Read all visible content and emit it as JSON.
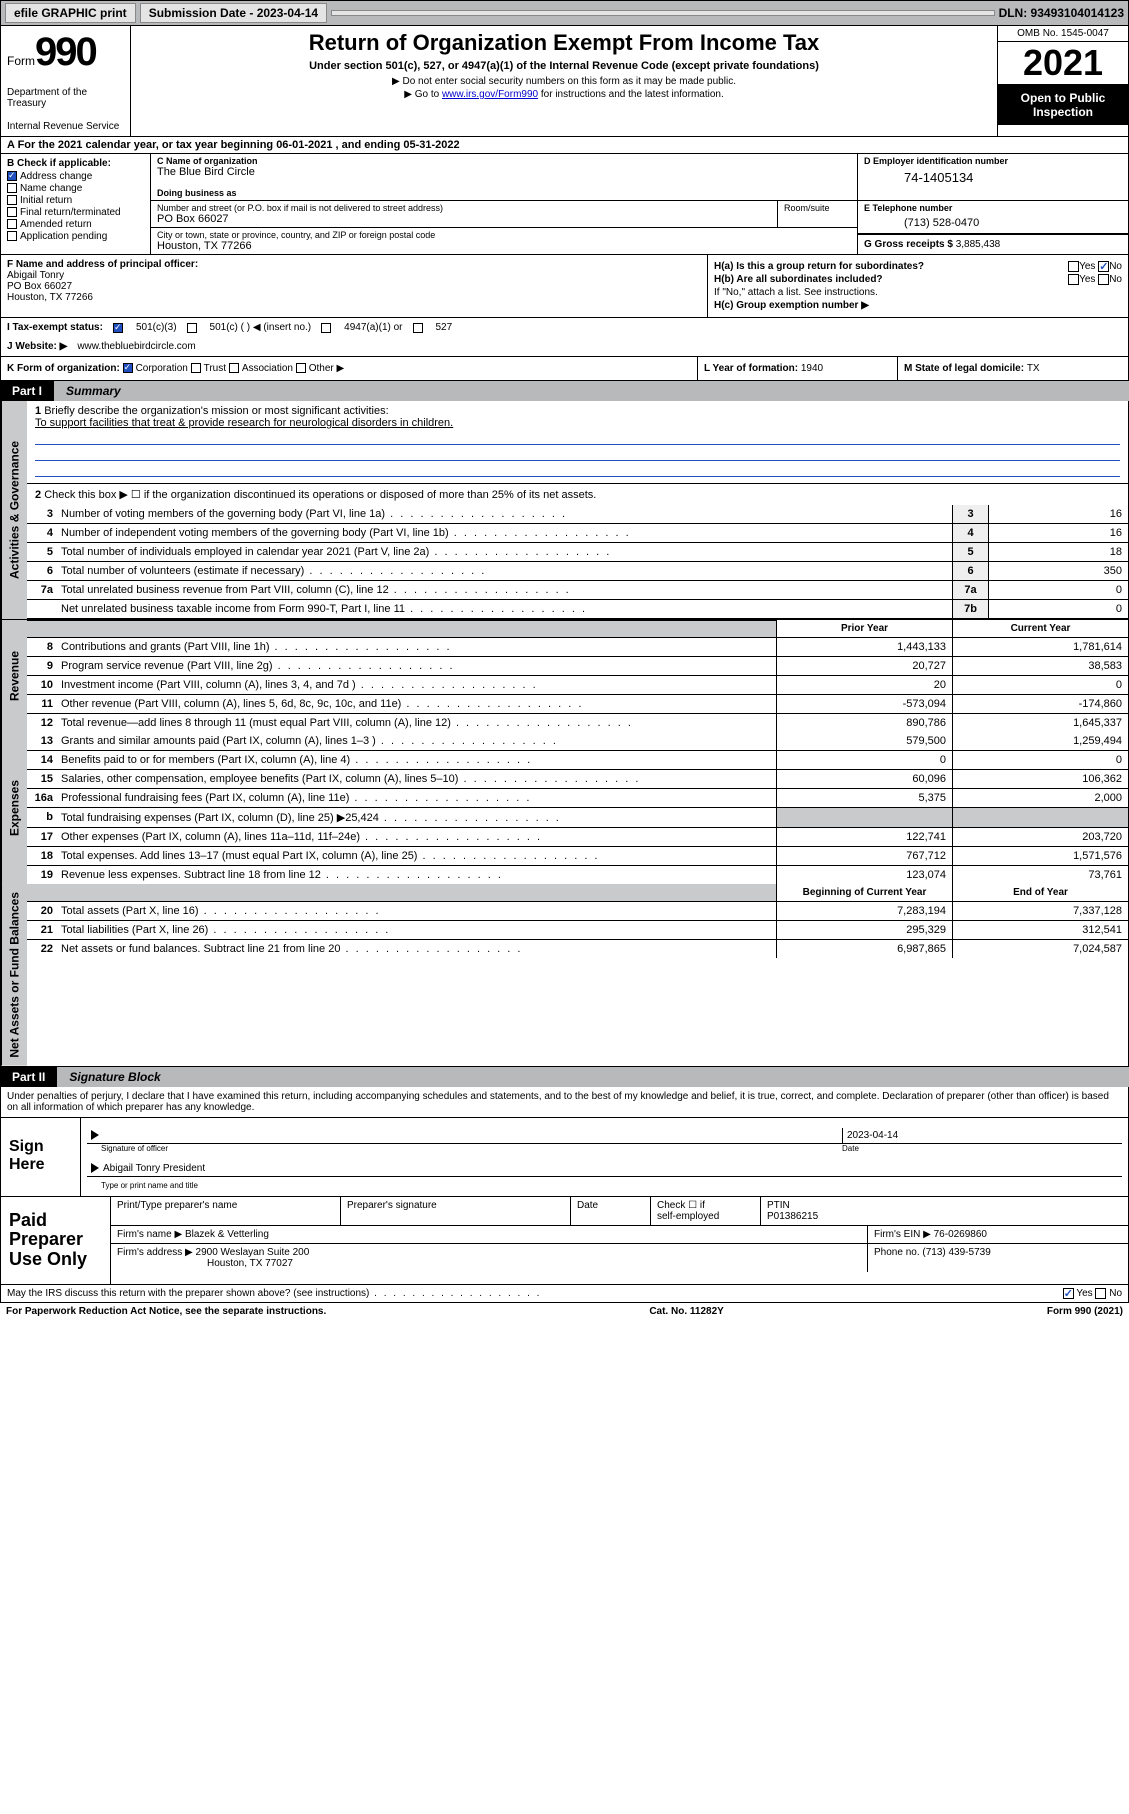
{
  "topbar": {
    "efile": "efile GRAPHIC print",
    "sub_label": "Submission Date - 2023-04-14",
    "dln": "DLN: 93493104014123"
  },
  "header": {
    "form_word": "Form",
    "form_num": "990",
    "title": "Return of Organization Exempt From Income Tax",
    "subtitle": "Under section 501(c), 527, or 4947(a)(1) of the Internal Revenue Code (except private foundations)",
    "note1": "▶ Do not enter social security numbers on this form as it may be made public.",
    "note2_pre": "▶ Go to ",
    "note2_link": "www.irs.gov/Form990",
    "note2_post": " for instructions and the latest information.",
    "dept": "Department of the Treasury",
    "irs": "Internal Revenue Service",
    "omb": "OMB No. 1545-0047",
    "year": "2021",
    "open": "Open to Public Inspection"
  },
  "row_a": "A For the 2021 calendar year, or tax year beginning 06-01-2021   , and ending 05-31-2022",
  "col_b": {
    "hdr": "B Check if applicable:",
    "items": [
      {
        "label": "Address change",
        "checked": true
      },
      {
        "label": "Name change",
        "checked": false
      },
      {
        "label": "Initial return",
        "checked": false
      },
      {
        "label": "Final return/terminated",
        "checked": false
      },
      {
        "label": "Amended return",
        "checked": false
      },
      {
        "label": "Application pending",
        "checked": false
      }
    ]
  },
  "col_c": {
    "name_lbl": "C Name of organization",
    "name": "The Blue Bird Circle",
    "dba_lbl": "Doing business as",
    "addr_lbl": "Number and street (or P.O. box if mail is not delivered to street address)",
    "addr": "PO Box 66027",
    "room_lbl": "Room/suite",
    "city_lbl": "City or town, state or province, country, and ZIP or foreign postal code",
    "city": "Houston, TX  77266"
  },
  "col_d": {
    "lbl": "D Employer identification number",
    "val": "74-1405134"
  },
  "col_e": {
    "lbl": "E Telephone number",
    "val": "(713) 528-0470"
  },
  "col_g": {
    "lbl": "G Gross receipts $ ",
    "val": "3,885,438"
  },
  "row_f": {
    "lbl": "F  Name and address of principal officer:",
    "name": "Abigail Tonry",
    "addr1": "PO Box 66027",
    "addr2": "Houston, TX  77266"
  },
  "row_h": {
    "ha": "H(a)  Is this a group return for subordinates?",
    "hb": "H(b)  Are all subordinates included?",
    "hb_note": "If \"No,\" attach a list. See instructions.",
    "hc": "H(c)  Group exemption number ▶",
    "ha_yes": false,
    "ha_no": true
  },
  "row_i": {
    "lbl": "I     Tax-exempt status:",
    "opt1": "501(c)(3)",
    "opt2": "501(c) (  ) ◀ (insert no.)",
    "opt3": "4947(a)(1) or",
    "opt4": "527"
  },
  "row_j": {
    "lbl": "J     Website: ▶ ",
    "val": "www.thebluebirdcircle.com"
  },
  "row_k": {
    "lbl": "K Form of organization:",
    "opts": [
      "Corporation",
      "Trust",
      "Association",
      "Other ▶"
    ]
  },
  "row_l": {
    "lbl": "L Year of formation: ",
    "val": "1940"
  },
  "row_m": {
    "lbl": "M State of legal domicile: ",
    "val": "TX"
  },
  "part1": {
    "num": "Part I",
    "title": "Summary"
  },
  "summary": {
    "q1_lbl": "Briefly describe the organization's mission or most significant activities:",
    "q1_mission": "To support facilities that treat & provide research for neurological disorders in children.",
    "q2": "Check this box ▶ ☐  if the organization discontinued its operations or disposed of more than 25% of its net assets.",
    "lines_gov": [
      {
        "n": "3",
        "d": "Number of voting members of the governing body (Part VI, line 1a)",
        "box": "3",
        "v": "16"
      },
      {
        "n": "4",
        "d": "Number of independent voting members of the governing body (Part VI, line 1b)",
        "box": "4",
        "v": "16"
      },
      {
        "n": "5",
        "d": "Total number of individuals employed in calendar year 2021 (Part V, line 2a)",
        "box": "5",
        "v": "18"
      },
      {
        "n": "6",
        "d": "Total number of volunteers (estimate if necessary)",
        "box": "6",
        "v": "350"
      },
      {
        "n": "7a",
        "d": "Total unrelated business revenue from Part VIII, column (C), line 12",
        "box": "7a",
        "v": "0"
      },
      {
        "n": "",
        "d": "Net unrelated business taxable income from Form 990-T, Part I, line 11",
        "box": "7b",
        "v": "0"
      }
    ],
    "hdr_prior": "Prior Year",
    "hdr_curr": "Current Year",
    "revenue": [
      {
        "n": "8",
        "d": "Contributions and grants (Part VIII, line 1h)",
        "p": "1,443,133",
        "c": "1,781,614"
      },
      {
        "n": "9",
        "d": "Program service revenue (Part VIII, line 2g)",
        "p": "20,727",
        "c": "38,583"
      },
      {
        "n": "10",
        "d": "Investment income (Part VIII, column (A), lines 3, 4, and 7d )",
        "p": "20",
        "c": "0"
      },
      {
        "n": "11",
        "d": "Other revenue (Part VIII, column (A), lines 5, 6d, 8c, 9c, 10c, and 11e)",
        "p": "-573,094",
        "c": "-174,860"
      },
      {
        "n": "12",
        "d": "Total revenue—add lines 8 through 11 (must equal Part VIII, column (A), line 12)",
        "p": "890,786",
        "c": "1,645,337"
      }
    ],
    "expenses": [
      {
        "n": "13",
        "d": "Grants and similar amounts paid (Part IX, column (A), lines 1–3 )",
        "p": "579,500",
        "c": "1,259,494"
      },
      {
        "n": "14",
        "d": "Benefits paid to or for members (Part IX, column (A), line 4)",
        "p": "0",
        "c": "0"
      },
      {
        "n": "15",
        "d": "Salaries, other compensation, employee benefits (Part IX, column (A), lines 5–10)",
        "p": "60,096",
        "c": "106,362"
      },
      {
        "n": "16a",
        "d": "Professional fundraising fees (Part IX, column (A), line 11e)",
        "p": "5,375",
        "c": "2,000"
      },
      {
        "n": "b",
        "d": "Total fundraising expenses (Part IX, column (D), line 25) ▶25,424",
        "p": "",
        "c": "",
        "grey": true
      },
      {
        "n": "17",
        "d": "Other expenses (Part IX, column (A), lines 11a–11d, 11f–24e)",
        "p": "122,741",
        "c": "203,720"
      },
      {
        "n": "18",
        "d": "Total expenses. Add lines 13–17 (must equal Part IX, column (A), line 25)",
        "p": "767,712",
        "c": "1,571,576"
      },
      {
        "n": "19",
        "d": "Revenue less expenses. Subtract line 18 from line 12",
        "p": "123,074",
        "c": "73,761"
      }
    ],
    "hdr_beg": "Beginning of Current Year",
    "hdr_end": "End of Year",
    "netassets": [
      {
        "n": "20",
        "d": "Total assets (Part X, line 16)",
        "p": "7,283,194",
        "c": "7,337,128"
      },
      {
        "n": "21",
        "d": "Total liabilities (Part X, line 26)",
        "p": "295,329",
        "c": "312,541"
      },
      {
        "n": "22",
        "d": "Net assets or fund balances. Subtract line 21 from line 20",
        "p": "6,987,865",
        "c": "7,024,587"
      }
    ]
  },
  "part2": {
    "num": "Part II",
    "title": "Signature Block"
  },
  "sig": {
    "intro": "Under penalties of perjury, I declare that I have examined this return, including accompanying schedules and statements, and to the best of my knowledge and belief, it is true, correct, and complete. Declaration of preparer (other than officer) is based on all information of which preparer has any knowledge.",
    "sign_here": "Sign Here",
    "sig_officer": "Signature of officer",
    "date_lbl": "Date",
    "date_val": "2023-04-14",
    "name": "Abigail Tonry President",
    "name_lbl": "Type or print name and title"
  },
  "prep": {
    "title": "Paid Preparer Use Only",
    "h1": "Print/Type preparer's name",
    "h2": "Preparer's signature",
    "h3": "Date",
    "h4_a": "Check ☐ if",
    "h4_b": "self-employed",
    "h5": "PTIN",
    "ptin": "P01386215",
    "firm_lbl": "Firm's name    ▶",
    "firm": "Blazek & Vetterling",
    "ein_lbl": "Firm's EIN ▶",
    "ein": "76-0269860",
    "addr_lbl": "Firm's address ▶",
    "addr1": "2900 Weslayan Suite 200",
    "addr2": "Houston, TX  77027",
    "phone_lbl": "Phone no. ",
    "phone": "(713) 439-5739"
  },
  "bottom": {
    "q": "May the IRS discuss this return with the preparer shown above? (see instructions)",
    "yes_checked": true
  },
  "footer": {
    "left": "For Paperwork Reduction Act Notice, see the separate instructions.",
    "mid": "Cat. No. 11282Y",
    "right": "Form 990 (2021)"
  },
  "vtabs": {
    "gov": "Activities & Governance",
    "rev": "Revenue",
    "exp": "Expenses",
    "net": "Net Assets or Fund Balances"
  }
}
